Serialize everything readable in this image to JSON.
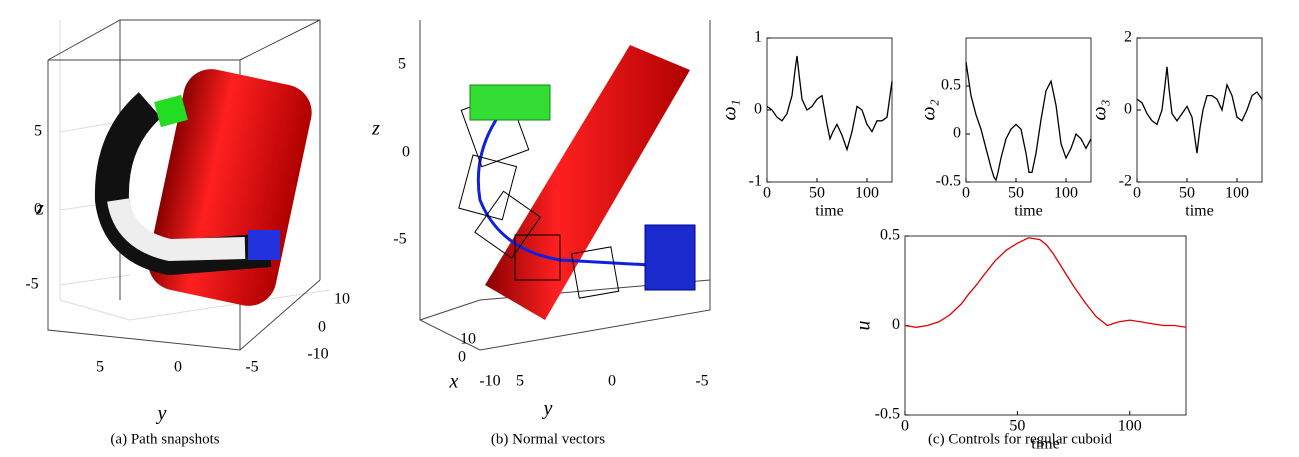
{
  "panels_3d": [
    {
      "zlabel": "z",
      "ylabel": "y",
      "zticks": [
        "5",
        "0",
        "-5"
      ],
      "yticks": [
        "5",
        "0",
        "-5"
      ],
      "xticks": [
        "10",
        "0",
        "-10"
      ],
      "caption": "(a) Path snapshots"
    },
    {
      "zlabel": "z",
      "ylabel": "y",
      "xlabel": "x",
      "zticks": [
        "5",
        "0",
        "-5"
      ],
      "yticks": [
        "5",
        "0",
        "-5"
      ],
      "xticks": [
        "10",
        "0",
        "-10"
      ],
      "caption": "(b) Normal vectors"
    }
  ],
  "caption_c": "(c) Controls for regular cuboid",
  "chart_data": [
    {
      "type": "line",
      "ylabel": "ω₁",
      "xlabel": "time",
      "color": "#000000",
      "x": [
        0,
        5,
        10,
        15,
        20,
        25,
        28,
        30,
        32,
        35,
        40,
        45,
        50,
        55,
        60,
        63,
        66,
        70,
        75,
        80,
        85,
        90,
        95,
        100,
        105,
        110,
        115,
        120,
        125
      ],
      "values": [
        0.05,
        0.0,
        -0.1,
        -0.15,
        -0.05,
        0.2,
        0.55,
        0.75,
        0.5,
        0.15,
        0.0,
        0.05,
        0.15,
        0.2,
        -0.2,
        -0.4,
        -0.3,
        -0.2,
        -0.35,
        -0.55,
        -0.3,
        0.05,
        0.0,
        -0.2,
        -0.3,
        -0.15,
        -0.15,
        -0.1,
        0.4
      ],
      "xlim": [
        0,
        125
      ],
      "xticks": [
        0,
        50,
        100
      ],
      "ylim": [
        -1,
        1
      ],
      "yticks": [
        -1,
        0,
        1
      ]
    },
    {
      "type": "line",
      "ylabel": "ω₂",
      "xlabel": "time",
      "color": "#000000",
      "x": [
        0,
        5,
        10,
        15,
        20,
        25,
        28,
        30,
        32,
        35,
        40,
        45,
        50,
        55,
        60,
        63,
        66,
        70,
        75,
        80,
        85,
        90,
        95,
        100,
        105,
        110,
        115,
        120,
        125
      ],
      "values": [
        0.75,
        0.4,
        0.2,
        0.05,
        -0.15,
        -0.35,
        -0.45,
        -0.48,
        -0.4,
        -0.25,
        -0.05,
        0.05,
        0.1,
        0.05,
        -0.2,
        -0.4,
        -0.4,
        -0.2,
        0.15,
        0.45,
        0.55,
        0.3,
        -0.1,
        -0.25,
        -0.15,
        0.0,
        -0.05,
        -0.15,
        -0.05
      ],
      "xlim": [
        0,
        125
      ],
      "xticks": [
        0,
        50,
        100
      ],
      "ylim": [
        -0.5,
        1
      ],
      "yticks": [
        -0.5,
        0,
        0.5
      ]
    },
    {
      "type": "line",
      "ylabel": "ω₃",
      "xlabel": "time",
      "color": "#000000",
      "x": [
        0,
        5,
        10,
        15,
        20,
        25,
        28,
        30,
        32,
        35,
        40,
        45,
        50,
        55,
        60,
        63,
        66,
        70,
        75,
        80,
        85,
        90,
        95,
        100,
        105,
        110,
        115,
        120,
        125
      ],
      "values": [
        0.3,
        0.2,
        -0.1,
        -0.3,
        -0.4,
        0.0,
        0.7,
        1.2,
        0.6,
        -0.1,
        -0.3,
        -0.1,
        0.1,
        -0.2,
        -1.2,
        -0.5,
        0.0,
        0.4,
        0.4,
        0.3,
        0.0,
        0.7,
        0.4,
        -0.2,
        -0.3,
        0.0,
        0.4,
        0.5,
        0.3
      ],
      "xlim": [
        0,
        125
      ],
      "xticks": [
        0,
        50,
        100
      ],
      "ylim": [
        -2,
        2
      ],
      "yticks": [
        -2,
        0,
        2
      ]
    },
    {
      "type": "line",
      "ylabel": "u",
      "xlabel": "time",
      "color": "#e00000",
      "x": [
        0,
        5,
        10,
        15,
        20,
        25,
        28,
        30,
        32,
        35,
        40,
        45,
        50,
        55,
        60,
        63,
        66,
        70,
        75,
        80,
        85,
        90,
        95,
        100,
        105,
        110,
        115,
        120,
        125
      ],
      "values": [
        0,
        -0.01,
        0,
        0.02,
        0.06,
        0.12,
        0.17,
        0.2,
        0.23,
        0.28,
        0.36,
        0.42,
        0.46,
        0.49,
        0.48,
        0.45,
        0.4,
        0.32,
        0.22,
        0.13,
        0.05,
        0.0,
        0.02,
        0.03,
        0.02,
        0.01,
        0.0,
        0.0,
        -0.01
      ],
      "xlim": [
        0,
        125
      ],
      "xticks": [
        0,
        50,
        100
      ],
      "ylim": [
        -0.5,
        0.5
      ],
      "yticks": [
        -0.5,
        0,
        0.5
      ]
    }
  ]
}
